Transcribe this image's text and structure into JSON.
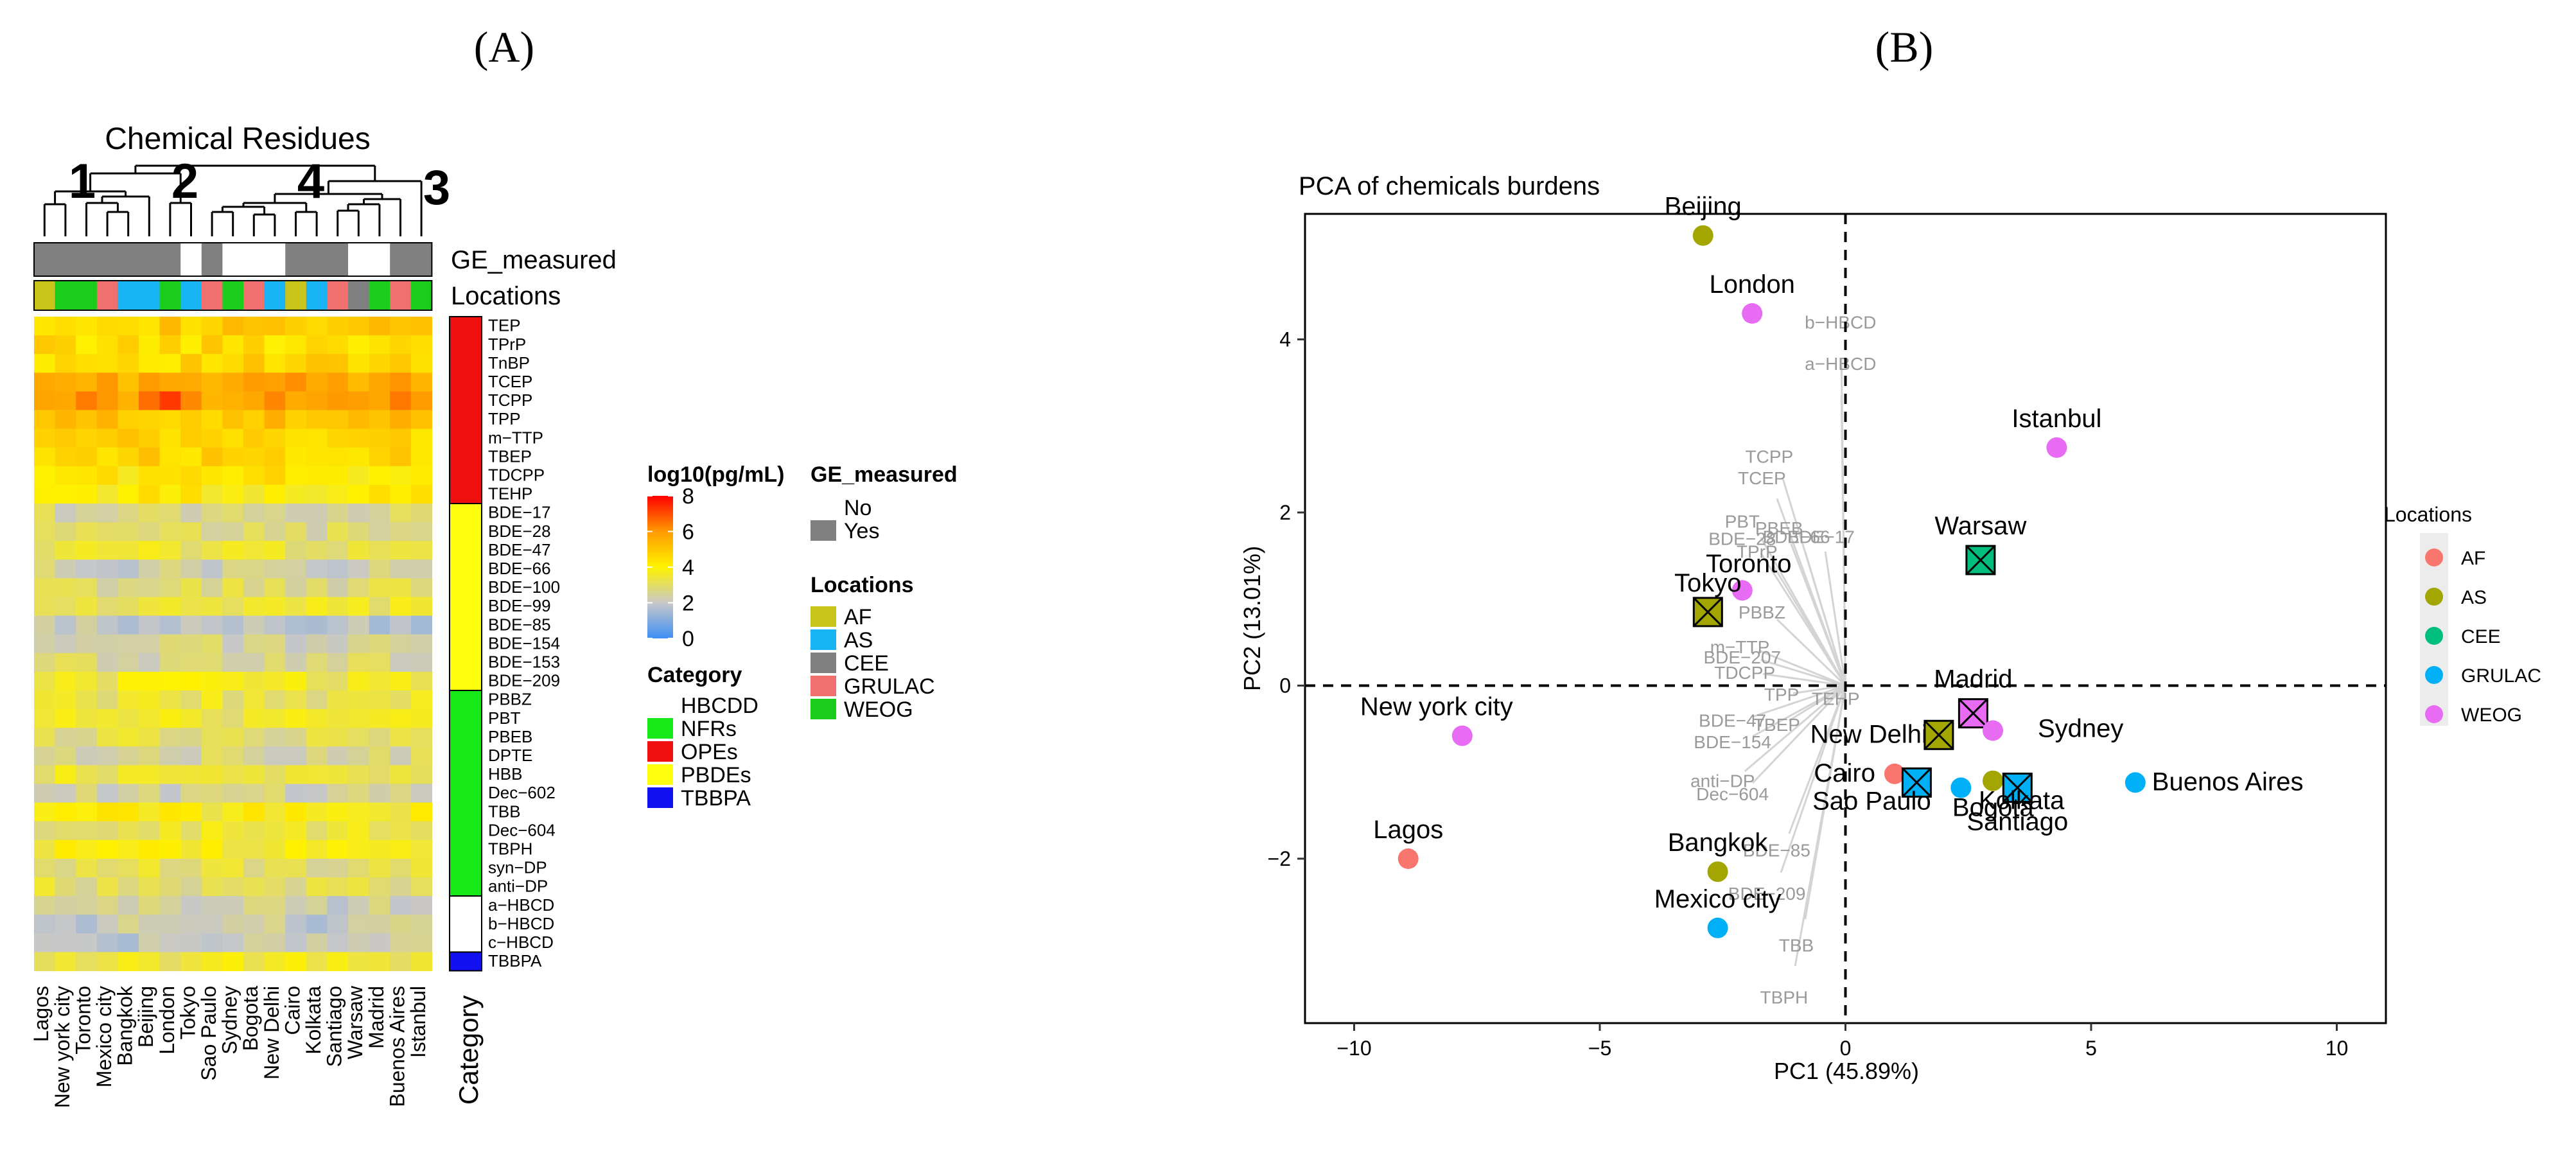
{
  "panels": {
    "a": "(A)",
    "b": "(B)"
  },
  "chart_data": [
    {
      "type": "heatmap",
      "title": "Chemical Residues",
      "cluster_numbers": [
        "1",
        "2",
        "4",
        "3"
      ],
      "annotation_rows": [
        "GE_measured",
        "Locations"
      ],
      "category_label": "Category",
      "columns": [
        "Lagos",
        "New york city",
        "Toronto",
        "Mexico city",
        "Bangkok",
        "Beijing",
        "London",
        "Tokyo",
        "Sao Paulo",
        "Sydney",
        "Bogota",
        "New Delhi",
        "Cairo",
        "Kolkata",
        "Santiago",
        "Warsaw",
        "Madrid",
        "Buenos Aires",
        "Istanbul"
      ],
      "column_locations": [
        "AF",
        "WEOG",
        "WEOG",
        "GRULAC",
        "AS",
        "AS",
        "WEOG",
        "AS",
        "GRULAC",
        "WEOG",
        "GRULAC",
        "AS",
        "AF",
        "AS",
        "GRULAC",
        "CEE",
        "WEOG",
        "GRULAC",
        "WEOG"
      ],
      "column_ge_measured": [
        "Yes",
        "Yes",
        "Yes",
        "Yes",
        "Yes",
        "Yes",
        "Yes",
        "No",
        "Yes",
        "No",
        "No",
        "No",
        "Yes",
        "Yes",
        "Yes",
        "No",
        "No",
        "Yes",
        "Yes"
      ],
      "rows": [
        "TEP",
        "TPrP",
        "TnBP",
        "TCEP",
        "TCPP",
        "TPP",
        "m−TTP",
        "TBEP",
        "TDCPP",
        "TEHP",
        "BDE−17",
        "BDE−28",
        "BDE−47",
        "BDE−66",
        "BDE−100",
        "BDE−99",
        "BDE−85",
        "BDE−154",
        "BDE−153",
        "BDE−209",
        "PBBZ",
        "PBT",
        "PBEB",
        "DPTE",
        "HBB",
        "Dec−602",
        "TBB",
        "Dec−604",
        "TBPH",
        "syn−DP",
        "anti−DP",
        "a−HBCD",
        "b−HBCD",
        "c−HBCD",
        "TBBPA"
      ],
      "row_category": [
        "OPEs",
        "OPEs",
        "OPEs",
        "OPEs",
        "OPEs",
        "OPEs",
        "OPEs",
        "OPEs",
        "OPEs",
        "OPEs",
        "PBDEs",
        "PBDEs",
        "PBDEs",
        "PBDEs",
        "PBDEs",
        "PBDEs",
        "PBDEs",
        "PBDEs",
        "PBDEs",
        "PBDEs",
        "NFRs",
        "NFRs",
        "NFRs",
        "NFRs",
        "NFRs",
        "NFRs",
        "NFRs",
        "NFRs",
        "NFRs",
        "NFRs",
        "NFRs",
        "HBCDD",
        "HBCDD",
        "HBCDD",
        "TBBPA"
      ],
      "row_base_log10": [
        4.8,
        4.5,
        4.6,
        5.6,
        5.9,
        5.0,
        4.6,
        4.7,
        4.2,
        4.0,
        2.6,
        2.7,
        3.3,
        2.3,
        2.8,
        3.2,
        1.9,
        2.4,
        2.6,
        3.5,
        3.2,
        3.4,
        3.0,
        2.6,
        3.3,
        2.4,
        3.8,
        3.3,
        3.7,
        3.0,
        3.0,
        2.3,
        2.1,
        2.1,
        3.4
      ],
      "legend": {
        "scale_title": "log10(pg/mL)",
        "scale_ticks": [
          "8",
          "6",
          "4",
          "2",
          "0"
        ],
        "scale_range": [
          0,
          8
        ],
        "scale_colors": [
          "#3d8ff5",
          "#c8c8c8",
          "#fff200",
          "#ff9a00",
          "#ff0000"
        ],
        "ge_title": "GE_measured",
        "ge_items": [
          {
            "label": "No",
            "color": "#ffffff"
          },
          {
            "label": "Yes",
            "color": "#808080"
          }
        ],
        "loc_title": "Locations",
        "loc_items": [
          {
            "label": "AF",
            "color": "#c8c41c"
          },
          {
            "label": "AS",
            "color": "#18b4f4"
          },
          {
            "label": "CEE",
            "color": "#808080"
          },
          {
            "label": "GRULAC",
            "color": "#f07070"
          },
          {
            "label": "WEOG",
            "color": "#1ccc1c"
          }
        ],
        "cat_title": "Category",
        "cat_items": [
          {
            "label": "HBCDD",
            "color": "#ffffff"
          },
          {
            "label": "NFRs",
            "color": "#17e817"
          },
          {
            "label": "OPEs",
            "color": "#f01010"
          },
          {
            "label": "PBDEs",
            "color": "#ffff10"
          },
          {
            "label": "TBBPA",
            "color": "#1010f0"
          }
        ]
      }
    },
    {
      "type": "scatter",
      "title": "PCA of chemicals burdens",
      "xlabel": "PC1 (45.89%)",
      "ylabel": "PC2 (13.01%)",
      "xlim": [
        -11,
        11
      ],
      "ylim": [
        -3.9,
        5.45
      ],
      "xticks": [
        -10,
        -5,
        0,
        5,
        10
      ],
      "yticks": [
        -2,
        0,
        2,
        4
      ],
      "xtick_labels": [
        "−10",
        "−5",
        "0",
        "5",
        "10"
      ],
      "ytick_labels": [
        "−2",
        "0",
        "2",
        "4"
      ],
      "legend_title": "Locations",
      "legend": [
        {
          "label": "AF",
          "color": "#f8766d"
        },
        {
          "label": "AS",
          "color": "#a3a500"
        },
        {
          "label": "CEE",
          "color": "#00bf7d"
        },
        {
          "label": "GRULAC",
          "color": "#00b0f6"
        },
        {
          "label": "WEOG",
          "color": "#e76bf3"
        }
      ],
      "points": [
        {
          "label": "Beijing",
          "group": "AS",
          "x": -2.9,
          "y": 5.2
        },
        {
          "label": "London",
          "group": "WEOG",
          "x": -1.9,
          "y": 4.3
        },
        {
          "label": "Istanbul",
          "group": "WEOG",
          "x": 4.3,
          "y": 2.75
        },
        {
          "label": "Warsaw",
          "group": "CEE",
          "x": 2.75,
          "y": 1.45
        },
        {
          "label": "Toronto",
          "group": "WEOG",
          "x": -2.1,
          "y": 1.1
        },
        {
          "label": "Tokyo",
          "group": "AS",
          "x": -2.8,
          "y": 0.85
        },
        {
          "label": "Madrid",
          "group": "WEOG",
          "x": 2.6,
          "y": -0.32
        },
        {
          "label": "New york city",
          "group": "WEOG",
          "x": -7.8,
          "y": -0.58
        },
        {
          "label": "New Delhi",
          "group": "AS",
          "x": 1.9,
          "y": -0.57
        },
        {
          "label": "Sydney",
          "group": "WEOG",
          "x": 3.0,
          "y": -0.52
        },
        {
          "label": "Kolkata",
          "group": "AS",
          "x": 3.0,
          "y": -1.1
        },
        {
          "label": "Cairo",
          "group": "AF",
          "x": 1.0,
          "y": -1.02
        },
        {
          "label": "Sao Paulo",
          "group": "GRULAC",
          "x": 1.45,
          "y": -1.12
        },
        {
          "label": "Bogota",
          "group": "GRULAC",
          "x": 2.35,
          "y": -1.18
        },
        {
          "label": "Santiago",
          "group": "GRULAC",
          "x": 3.5,
          "y": -1.18
        },
        {
          "label": "Buenos Aires",
          "group": "GRULAC",
          "x": 5.9,
          "y": -1.12
        },
        {
          "label": "Lagos",
          "group": "AF",
          "x": -8.9,
          "y": -2.0
        },
        {
          "label": "Bangkok",
          "group": "AS",
          "x": -2.6,
          "y": -2.15
        },
        {
          "label": "Mexico city",
          "group": "GRULAC",
          "x": -2.6,
          "y": -2.8
        }
      ],
      "ge_boxed": [
        "Warsaw",
        "Tokyo",
        "Madrid",
        "New Delhi",
        "Sao Paulo",
        "Santiago"
      ],
      "loadings": [
        {
          "label": "b−HBCD",
          "x": -0.1,
          "y": 4.2
        },
        {
          "label": "a−HBCD",
          "x": -0.1,
          "y": 3.72
        },
        {
          "label": "TCPP",
          "x": -1.55,
          "y": 2.65
        },
        {
          "label": "TCEP",
          "x": -1.7,
          "y": 2.4
        },
        {
          "label": "PBT",
          "x": -2.1,
          "y": 1.9
        },
        {
          "label": "PBEB",
          "x": -1.35,
          "y": 1.82
        },
        {
          "label": "BDE−28",
          "x": -2.1,
          "y": 1.7
        },
        {
          "label": "BDE−66",
          "x": -1.0,
          "y": 1.72
        },
        {
          "label": "TPrP",
          "x": -1.8,
          "y": 1.55
        },
        {
          "label": "BDE−17",
          "x": -0.5,
          "y": 1.72
        },
        {
          "label": "PBBZ",
          "x": -1.7,
          "y": 0.85
        },
        {
          "label": "m−TTP",
          "x": -2.15,
          "y": 0.45
        },
        {
          "label": "BDE−207",
          "x": -2.1,
          "y": 0.33
        },
        {
          "label": "TDCPP",
          "x": -2.05,
          "y": 0.15
        },
        {
          "label": "TPP",
          "x": -1.3,
          "y": -0.1
        },
        {
          "label": "TEHP",
          "x": -0.2,
          "y": -0.15
        },
        {
          "label": "BDE−47",
          "x": -2.3,
          "y": -0.4
        },
        {
          "label": "TBEP",
          "x": -1.4,
          "y": -0.45
        },
        {
          "label": "BDE−154",
          "x": -2.3,
          "y": -0.65
        },
        {
          "label": "anti−DP",
          "x": -2.5,
          "y": -1.1
        },
        {
          "label": "Dec−604",
          "x": -2.3,
          "y": -1.25
        },
        {
          "label": "BDE−85",
          "x": -1.4,
          "y": -1.9
        },
        {
          "label": "BDE−209",
          "x": -1.6,
          "y": -2.4
        },
        {
          "label": "TBB",
          "x": -1.0,
          "y": -3.0
        },
        {
          "label": "TBPH",
          "x": -1.25,
          "y": -3.6
        }
      ]
    }
  ]
}
